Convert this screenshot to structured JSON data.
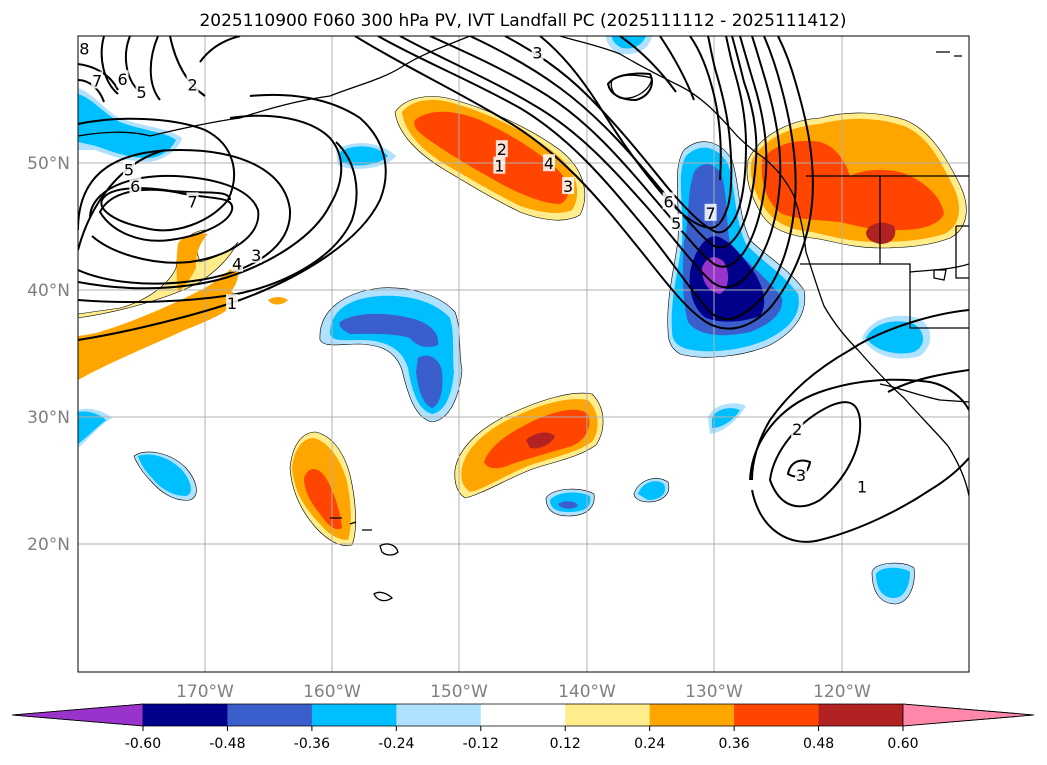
{
  "title": "2025110900 F060 300 hPa PV, IVT Landfall PC (2025111112 - 2025111412)",
  "chart_data": {
    "type": "map",
    "projection": "plate-carree",
    "lon_range": [
      -180,
      -110
    ],
    "lat_range": [
      10,
      60
    ],
    "lat_ticks": [
      {
        "value": 20,
        "label": "20°N"
      },
      {
        "value": 30,
        "label": "30°N"
      },
      {
        "value": 40,
        "label": "40°N"
      },
      {
        "value": 50,
        "label": "50°N"
      }
    ],
    "lon_ticks": [
      {
        "value": -170,
        "label": "170°W"
      },
      {
        "value": -160,
        "label": "160°W"
      },
      {
        "value": -150,
        "label": "150°W"
      },
      {
        "value": -140,
        "label": "140°W"
      },
      {
        "value": -130,
        "label": "130°W"
      },
      {
        "value": -120,
        "label": "120°W"
      }
    ],
    "colorbar": {
      "levels": [
        "-0.60",
        "-0.48",
        "-0.36",
        "-0.24",
        "-0.12",
        "0.12",
        "0.24",
        "0.36",
        "0.48",
        "0.60"
      ],
      "colors": [
        "#9933cc",
        "#00008b",
        "#3a5fcd",
        "#00bfff",
        "#b0e2ff",
        "#ffffff",
        "#ffec8b",
        "#ffa500",
        "#ff4500",
        "#b22222",
        "#ff88aa"
      ]
    },
    "shading_note": "IVT landfall principal component correlation/regression (filled)",
    "contour_note": "300 hPa PV (PVU) contours",
    "contour_labels": [
      {
        "text": "8",
        "lon": -179.5,
        "lat": 59.0
      },
      {
        "text": "7",
        "lon": -178.5,
        "lat": 56.5
      },
      {
        "text": "6",
        "lon": -176.5,
        "lat": 56.6
      },
      {
        "text": "5",
        "lon": -175.0,
        "lat": 55.6
      },
      {
        "text": "2",
        "lon": -171.0,
        "lat": 56.2
      },
      {
        "text": "5",
        "lon": -176.0,
        "lat": 49.5
      },
      {
        "text": "6",
        "lon": -175.5,
        "lat": 48.2
      },
      {
        "text": "7",
        "lon": -171.0,
        "lat": 47.0
      },
      {
        "text": "4",
        "lon": -167.5,
        "lat": 42.1
      },
      {
        "text": "3",
        "lon": -166.0,
        "lat": 42.8
      },
      {
        "text": "1",
        "lon": -167.9,
        "lat": 39.0
      },
      {
        "text": "3",
        "lon": -143.9,
        "lat": 58.7
      },
      {
        "text": "2",
        "lon": -146.7,
        "lat": 51.1
      },
      {
        "text": "1",
        "lon": -146.9,
        "lat": 49.8
      },
      {
        "text": "4",
        "lon": -143.0,
        "lat": 50.0
      },
      {
        "text": "3",
        "lon": -141.5,
        "lat": 48.2
      },
      {
        "text": "6",
        "lon": -133.6,
        "lat": 47.0
      },
      {
        "text": "5",
        "lon": -133.0,
        "lat": 45.3
      },
      {
        "text": "7",
        "lon": -130.3,
        "lat": 46.1
      },
      {
        "text": "2",
        "lon": -123.5,
        "lat": 29.1
      },
      {
        "text": "3",
        "lon": -123.2,
        "lat": 25.5
      },
      {
        "text": "1",
        "lon": -118.4,
        "lat": 24.6
      }
    ]
  }
}
